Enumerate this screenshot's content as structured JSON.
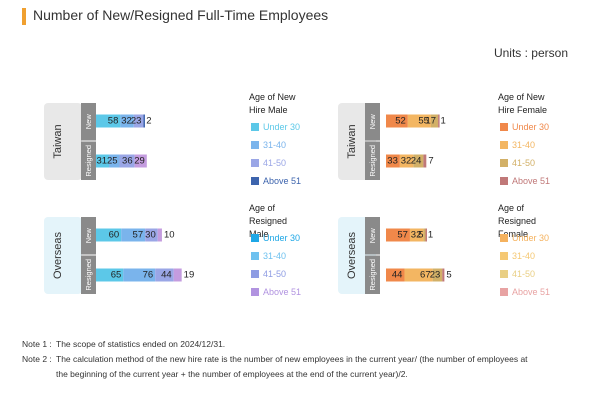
{
  "title": "Number of New/Resigned Full-Time Employees",
  "units": "Units : person",
  "colors": {
    "accent": "#f0a030",
    "male": [
      "#5cc8e8",
      "#7ab4ec",
      "#9aa6e6",
      "#c49cdf"
    ],
    "female": [
      "#f0884a",
      "#f3b662",
      "#d2b067",
      "#c07878"
    ],
    "male_legend_alt": [
      "#1ea7e6",
      "#6ec1ef",
      "#8e9ce3",
      "#b193e0"
    ],
    "female_legend_alt": [
      "#f5b25e",
      "#f5c873",
      "#e9cf84",
      "#e8a3a3"
    ],
    "above51_male_new": "#3d64ad"
  },
  "row_groups": [
    "Taiwan",
    "Overseas"
  ],
  "row_types": [
    "New",
    "Resigned"
  ],
  "chart_data": [
    {
      "type": "bar",
      "stacked": true,
      "orientation": "horizontal",
      "title": "",
      "categories": [
        "Taiwan New",
        "Taiwan Resigned",
        "Overseas New",
        "Overseas Resigned"
      ],
      "series": [
        {
          "name": "Under 30",
          "values": [
            58,
            31,
            60,
            65
          ]
        },
        {
          "name": "31-40",
          "values": [
            32,
            25,
            57,
            76
          ]
        },
        {
          "name": "41-50",
          "values": [
            23,
            36,
            30,
            44
          ]
        },
        {
          "name": "Above 51",
          "values": [
            2,
            29,
            10,
            19
          ]
        }
      ],
      "legends": [
        {
          "title": "Age of New Hire Male",
          "items": [
            "Under 30",
            "31-40",
            "41-50",
            "Above 51"
          ]
        },
        {
          "title": "Age of Resigned Male",
          "items": [
            "Under 30",
            "31-40",
            "41-50",
            "Above 51"
          ]
        }
      ]
    },
    {
      "type": "bar",
      "stacked": true,
      "orientation": "horizontal",
      "title": "",
      "categories": [
        "Taiwan New",
        "Taiwan Resigned",
        "Overseas New",
        "Overseas Resigned"
      ],
      "series": [
        {
          "name": "Under 30",
          "values": [
            52,
            33,
            57,
            44
          ]
        },
        {
          "name": "31-40",
          "values": [
            55,
            32,
            32,
            67
          ]
        },
        {
          "name": "41-50",
          "values": [
            17,
            24,
            5,
            23
          ]
        },
        {
          "name": "Above 51",
          "values": [
            1,
            7,
            1,
            5
          ]
        }
      ],
      "legends": [
        {
          "title": "Age of New Hire Female",
          "items": [
            "Under 30",
            "31-40",
            "41-50",
            "Above 51"
          ]
        },
        {
          "title": "Age of Resigned Female",
          "items": [
            "Under 30",
            "31-40",
            "41-50",
            "Above 51"
          ]
        }
      ]
    }
  ],
  "notes": [
    {
      "label": "Note 1 :",
      "lines": [
        "The scope of statistics ended on 2024/12/31."
      ]
    },
    {
      "label": "Note 2 :",
      "lines": [
        "The calculation method of the new hire rate is the number of new employees in the current year/ (the number of employees at",
        "the beginning of the current year + the number of employees at the end of the current year)/2."
      ]
    }
  ]
}
